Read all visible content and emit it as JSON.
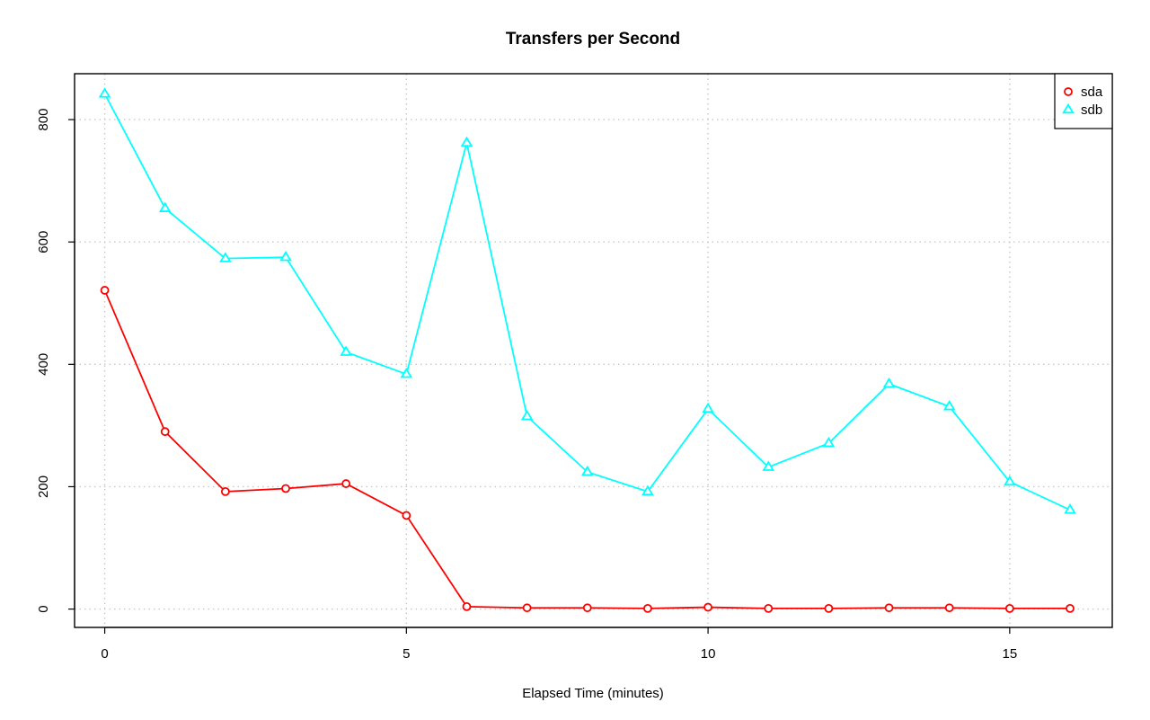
{
  "chart_data": {
    "type": "line",
    "title": "Transfers per Second",
    "xlabel": "Elapsed Time (minutes)",
    "ylabel": "",
    "xlim": [
      -0.5,
      16.7
    ],
    "ylim": [
      -30,
      875
    ],
    "xticks": [
      0,
      5,
      10,
      15
    ],
    "yticks": [
      0,
      200,
      400,
      600,
      800
    ],
    "grid": true,
    "legend_position": "top-right",
    "x": [
      0,
      1,
      2,
      3,
      4,
      5,
      6,
      7,
      8,
      9,
      10,
      11,
      12,
      13,
      14,
      15,
      16
    ],
    "series": [
      {
        "name": "sda",
        "color": "#ff0000",
        "marker": "circle",
        "values": [
          521,
          290,
          192,
          197,
          205,
          153,
          4,
          2,
          2,
          1,
          3,
          1,
          1,
          2,
          2,
          1,
          1
        ]
      },
      {
        "name": "sdb",
        "color": "#00ffff",
        "marker": "triangle",
        "values": [
          842,
          655,
          573,
          575,
          420,
          384,
          762,
          315,
          224,
          192,
          327,
          232,
          271,
          368,
          331,
          208,
          162
        ]
      }
    ]
  }
}
